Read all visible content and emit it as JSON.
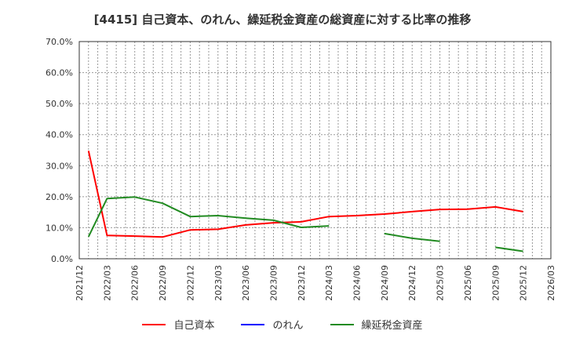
{
  "chart_data": {
    "type": "line",
    "title": "[4415]  自己資本、のれん、繰延税金資産の総資産に対する比率の推移",
    "xlabel": "",
    "ylabel": "",
    "ylim": [
      0,
      70
    ],
    "yticks": [
      "0.0%",
      "10.0%",
      "20.0%",
      "30.0%",
      "40.0%",
      "50.0%",
      "60.0%",
      "70.0%"
    ],
    "xticks": [
      "2021/12",
      "2022/03",
      "2022/06",
      "2022/09",
      "2022/12",
      "2023/03",
      "2023/06",
      "2023/09",
      "2023/12",
      "2024/03",
      "2024/06",
      "2024/09",
      "2024/12",
      "2025/03",
      "2025/06",
      "2025/09",
      "2025/12",
      "2026/03"
    ],
    "grid": true,
    "legend_position": "bottom",
    "x": [
      "2022/01",
      "2022/03",
      "2022/06",
      "2022/09",
      "2022/12",
      "2023/03",
      "2023/06",
      "2023/09",
      "2023/12",
      "2024/03",
      "2024/06",
      "2024/09",
      "2024/12",
      "2025/03",
      "2025/06",
      "2025/09",
      "2025/12"
    ],
    "series": [
      {
        "name": "自己資本",
        "color": "#ff0000",
        "values": [
          34.8,
          7.5,
          7.3,
          7.0,
          9.3,
          9.5,
          10.9,
          11.6,
          11.9,
          13.6,
          13.9,
          14.4,
          15.2,
          15.9,
          16.0,
          16.7,
          15.2
        ]
      },
      {
        "name": "のれん",
        "color": "#0000ff",
        "values": [
          null,
          null,
          null,
          null,
          null,
          null,
          null,
          null,
          null,
          null,
          null,
          null,
          null,
          null,
          null,
          null,
          null
        ]
      },
      {
        "name": "繰延税金資産",
        "color": "#228b22",
        "values": [
          7.1,
          19.4,
          19.9,
          17.9,
          13.6,
          13.9,
          13.1,
          12.4,
          10.1,
          10.6,
          null,
          8.1,
          6.6,
          5.6,
          null,
          3.7,
          2.4
        ]
      }
    ]
  },
  "legend": {
    "items": [
      {
        "label": "自己資本",
        "color": "#ff0000"
      },
      {
        "label": "のれん",
        "color": "#0000ff"
      },
      {
        "label": "繰延税金資産",
        "color": "#228b22"
      }
    ]
  }
}
